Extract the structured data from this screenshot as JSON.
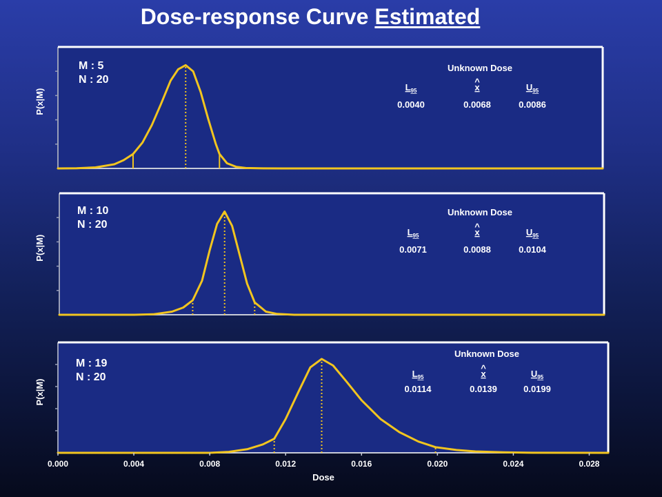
{
  "title": {
    "main": "Dose-response Curve ",
    "underlined": "Estimated"
  },
  "colors": {
    "curve": "#f2c51f",
    "frame": "#ffffff",
    "panel": "#1a2b84",
    "text": "#ffffff"
  },
  "chart_data": {
    "type": "line",
    "xlabel": "Dose",
    "ylabel": "P(x|M)",
    "xlim": [
      0.0,
      0.029
    ],
    "xticks": [
      "0.000",
      "0.004",
      "0.008",
      "0.012",
      "0.016",
      "0.020",
      "0.024",
      "0.028"
    ],
    "xtick_values": [
      0.0,
      0.004,
      0.008,
      0.012,
      0.016,
      0.02,
      0.024,
      0.028
    ],
    "panels": [
      {
        "M_label": "M : 5",
        "N_label": "N : 20",
        "estimate_header": "Unknown Dose",
        "L_label": "L",
        "L_sub": "95",
        "X_label": "x",
        "X_hat": "^",
        "U_label": "U",
        "U_sub": "95",
        "L95_text": "0.0040",
        "xhat_text": "0.0068",
        "U95_text": "0.0086",
        "L95": 0.004,
        "xhat": 0.0068,
        "U95": 0.0086,
        "curve": {
          "x": [
            0.0,
            0.001,
            0.002,
            0.003,
            0.0035,
            0.004,
            0.0045,
            0.005,
            0.0055,
            0.006,
            0.0064,
            0.0068,
            0.0072,
            0.0076,
            0.008,
            0.0084,
            0.0086,
            0.009,
            0.0095,
            0.01,
            0.011,
            0.012,
            0.029
          ],
          "y": [
            0.0,
            0.002,
            0.01,
            0.04,
            0.08,
            0.14,
            0.25,
            0.42,
            0.63,
            0.85,
            0.96,
            1.0,
            0.94,
            0.74,
            0.48,
            0.24,
            0.14,
            0.05,
            0.015,
            0.004,
            0.001,
            0.0,
            0.0
          ]
        }
      },
      {
        "M_label": "M : 10",
        "N_label": "N : 20",
        "estimate_header": "Unknown Dose",
        "L_label": "L",
        "L_sub": "95",
        "X_label": "x",
        "X_hat": "^",
        "U_label": "U",
        "U_sub": "95",
        "L95_text": "0.0071",
        "xhat_text": "0.0088",
        "U95_text": "0.0104",
        "L95": 0.0071,
        "xhat": 0.0088,
        "U95": 0.0104,
        "curve": {
          "x": [
            0.0,
            0.004,
            0.005,
            0.006,
            0.0066,
            0.0071,
            0.0076,
            0.008,
            0.0084,
            0.0088,
            0.0092,
            0.0096,
            0.01,
            0.0104,
            0.011,
            0.0116,
            0.0125,
            0.029
          ],
          "y": [
            0.0,
            0.0,
            0.005,
            0.03,
            0.07,
            0.14,
            0.33,
            0.62,
            0.88,
            1.0,
            0.86,
            0.58,
            0.3,
            0.12,
            0.03,
            0.008,
            0.0,
            0.0
          ]
        }
      },
      {
        "M_label": "M : 19",
        "N_label": "N : 20",
        "estimate_header": "Unknown Dose",
        "L_label": "L",
        "L_sub": "95",
        "X_label": "x",
        "X_hat": "^",
        "U_label": "U",
        "U_sub": "95",
        "L95_text": "0.0114",
        "xhat_text": "0.0139",
        "U95_text": "0.0199",
        "L95": 0.0114,
        "xhat": 0.0139,
        "U95": 0.0199,
        "curve": {
          "x": [
            0.0,
            0.008,
            0.009,
            0.01,
            0.0108,
            0.0114,
            0.012,
            0.0127,
            0.0133,
            0.0139,
            0.0145,
            0.0152,
            0.016,
            0.017,
            0.018,
            0.019,
            0.0199,
            0.021,
            0.022,
            0.0235,
            0.025,
            0.029
          ],
          "y": [
            0.0,
            0.0,
            0.01,
            0.04,
            0.09,
            0.15,
            0.36,
            0.66,
            0.91,
            1.0,
            0.93,
            0.76,
            0.56,
            0.36,
            0.22,
            0.12,
            0.06,
            0.03,
            0.015,
            0.005,
            0.001,
            0.0
          ]
        }
      }
    ]
  }
}
